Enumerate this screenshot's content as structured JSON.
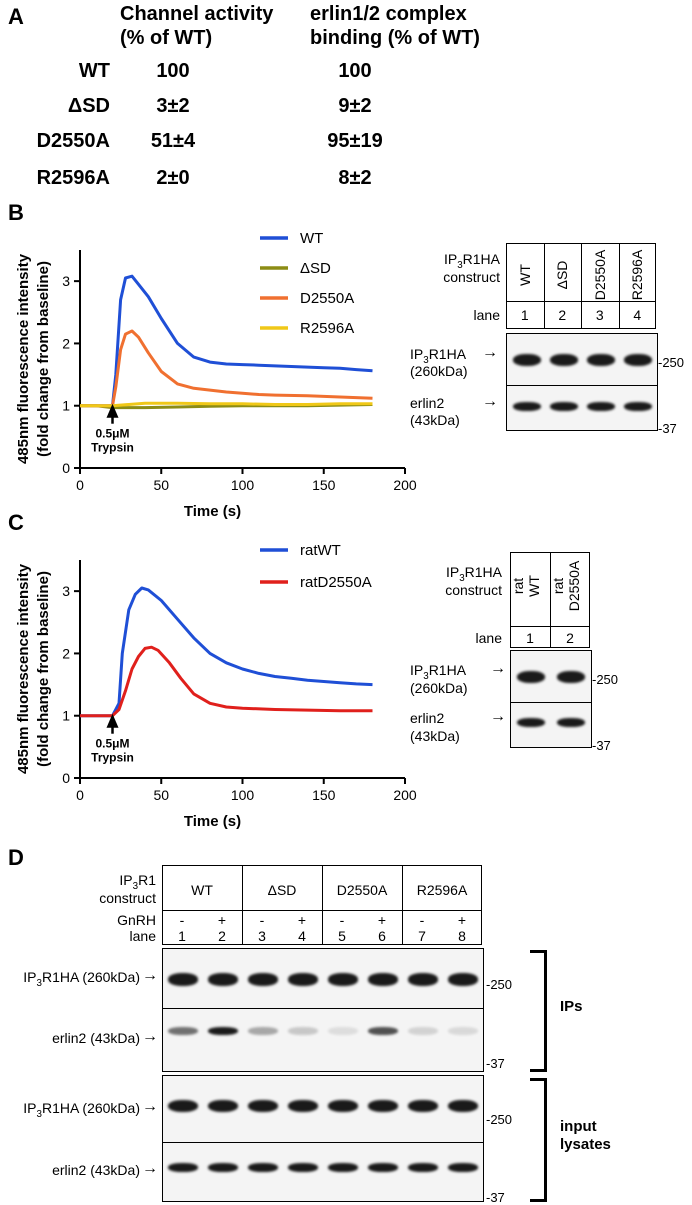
{
  "panels": {
    "a": "A",
    "b": "B",
    "c": "C",
    "d": "D"
  },
  "table_a": {
    "col1": [
      "Channel activity",
      "(% of WT)"
    ],
    "col2": [
      "erlin1/2 complex",
      "binding (% of WT)"
    ],
    "rows": [
      {
        "label": "WT",
        "activity": "100",
        "binding": "100"
      },
      {
        "label": "ΔSD",
        "activity": "3±2",
        "binding": "9±2"
      },
      {
        "label": "D2550A",
        "activity": "51±4",
        "binding": "95±19"
      },
      {
        "label": "R2596A",
        "activity": "2±0",
        "binding": "8±2"
      }
    ]
  },
  "chart_data": [
    {
      "type": "line",
      "panel": "B",
      "xlabel": "Time (s)",
      "ylabel": [
        "485nm fluorescence intensity",
        "(fold change from baseline)"
      ],
      "xlim": [
        0,
        200
      ],
      "ylim": [
        0,
        3.5
      ],
      "xticks": [
        0,
        50,
        100,
        150,
        200
      ],
      "yticks": [
        0,
        1,
        2,
        3
      ],
      "annotation": [
        "0.5μM",
        "Trypsin"
      ],
      "annotation_x": 20,
      "series": [
        {
          "name": "WT",
          "color": "#1f4fd6",
          "x": [
            0,
            10,
            20,
            22,
            25,
            28,
            32,
            36,
            42,
            50,
            60,
            70,
            80,
            90,
            100,
            110,
            120,
            130,
            140,
            150,
            160,
            170,
            180
          ],
          "y": [
            1,
            1,
            1,
            1.5,
            2.7,
            3.05,
            3.08,
            2.95,
            2.75,
            2.4,
            2.0,
            1.78,
            1.7,
            1.67,
            1.66,
            1.65,
            1.64,
            1.63,
            1.62,
            1.61,
            1.6,
            1.58,
            1.56
          ]
        },
        {
          "name": "ΔSD",
          "color": "#8c8c14",
          "x": [
            0,
            10,
            20,
            30,
            40,
            60,
            80,
            100,
            120,
            140,
            160,
            180
          ],
          "y": [
            1,
            1,
            0.97,
            0.97,
            0.97,
            0.98,
            0.99,
            1.0,
            1.0,
            1.0,
            1.01,
            1.02
          ]
        },
        {
          "name": "D2550A",
          "color": "#f07030",
          "x": [
            0,
            10,
            20,
            22,
            25,
            28,
            32,
            36,
            42,
            50,
            60,
            70,
            80,
            90,
            100,
            110,
            120,
            140,
            160,
            180
          ],
          "y": [
            1,
            1,
            1,
            1.3,
            1.9,
            2.15,
            2.2,
            2.1,
            1.85,
            1.55,
            1.35,
            1.28,
            1.25,
            1.22,
            1.2,
            1.18,
            1.17,
            1.16,
            1.14,
            1.12
          ]
        },
        {
          "name": "R2596A",
          "color": "#f0c818",
          "x": [
            0,
            10,
            20,
            30,
            40,
            60,
            80,
            100,
            120,
            140,
            160,
            180
          ],
          "y": [
            1,
            1,
            1.0,
            1.02,
            1.04,
            1.04,
            1.03,
            1.03,
            1.02,
            1.02,
            1.03,
            1.03
          ]
        }
      ]
    },
    {
      "type": "line",
      "panel": "C",
      "xlabel": "Time (s)",
      "ylabel": [
        "485nm fluorescence intensity",
        "(fold change from baseline)"
      ],
      "xlim": [
        0,
        200
      ],
      "ylim": [
        0,
        3.5
      ],
      "xticks": [
        0,
        50,
        100,
        150,
        200
      ],
      "yticks": [
        0,
        1,
        2,
        3
      ],
      "annotation": [
        "0.5μM",
        "Trypsin"
      ],
      "annotation_x": 20,
      "series": [
        {
          "name": "ratWT",
          "color": "#1f4fd6",
          "x": [
            0,
            10,
            20,
            24,
            26,
            30,
            34,
            38,
            42,
            50,
            60,
            70,
            80,
            90,
            100,
            110,
            120,
            130,
            140,
            150,
            160,
            170,
            180
          ],
          "y": [
            1,
            1,
            1,
            1.2,
            2.0,
            2.7,
            2.95,
            3.05,
            3.02,
            2.85,
            2.55,
            2.25,
            2.0,
            1.85,
            1.75,
            1.68,
            1.63,
            1.6,
            1.57,
            1.55,
            1.53,
            1.51,
            1.5
          ]
        },
        {
          "name": "ratD2550A",
          "color": "#e0201c",
          "x": [
            0,
            10,
            20,
            24,
            28,
            32,
            36,
            40,
            44,
            48,
            55,
            62,
            70,
            80,
            90,
            100,
            120,
            140,
            160,
            180
          ],
          "y": [
            1,
            1,
            1,
            1.1,
            1.4,
            1.75,
            1.95,
            2.08,
            2.1,
            2.05,
            1.85,
            1.6,
            1.35,
            1.2,
            1.14,
            1.12,
            1.1,
            1.09,
            1.08,
            1.08
          ]
        }
      ]
    }
  ],
  "blot_b": {
    "construct_label": [
      "IP3R1HA",
      "construct"
    ],
    "lanes": [
      "WT",
      "ΔSD",
      "D2550A",
      "R2596A"
    ],
    "lane_label": "lane",
    "lane_numbers": [
      "1",
      "2",
      "3",
      "4"
    ],
    "row1": [
      "IP3R1HA",
      "(260kDa)"
    ],
    "row2": [
      "erlin2",
      "(43kDa)"
    ],
    "mw1": "-250",
    "mw2": "-37"
  },
  "blot_c": {
    "construct_label": [
      "IP3R1HA",
      "construct"
    ],
    "lanes": [
      [
        "rat",
        "WT"
      ],
      [
        "rat",
        "D2550A"
      ]
    ],
    "lane_label": "lane",
    "lane_numbers": [
      "1",
      "2"
    ],
    "row1": [
      "IP3R1HA",
      "(260kDa)"
    ],
    "row2": [
      "erlin2",
      "(43kDa)"
    ],
    "mw1": "-250",
    "mw2": "-37"
  },
  "blot_d": {
    "construct_label": [
      "IP3R1",
      "construct"
    ],
    "groups": [
      "WT",
      "ΔSD",
      "D2550A",
      "R2596A"
    ],
    "gnrh_label": "GnRH",
    "gnrh": [
      "-",
      "+",
      "-",
      "+",
      "-",
      "+",
      "-",
      "+"
    ],
    "lane_label": "lane",
    "lane_numbers": [
      "1",
      "2",
      "3",
      "4",
      "5",
      "6",
      "7",
      "8"
    ],
    "rows": [
      "IP3R1HA (260kDa)",
      "erlin2 (43kDa)",
      "IP3R1HA (260kDa)",
      "erlin2 (43kDa)"
    ],
    "mw": [
      "-250",
      "-37",
      "-250",
      "-37"
    ],
    "bracket1": "IPs",
    "bracket2": [
      "input",
      "lysates"
    ]
  }
}
